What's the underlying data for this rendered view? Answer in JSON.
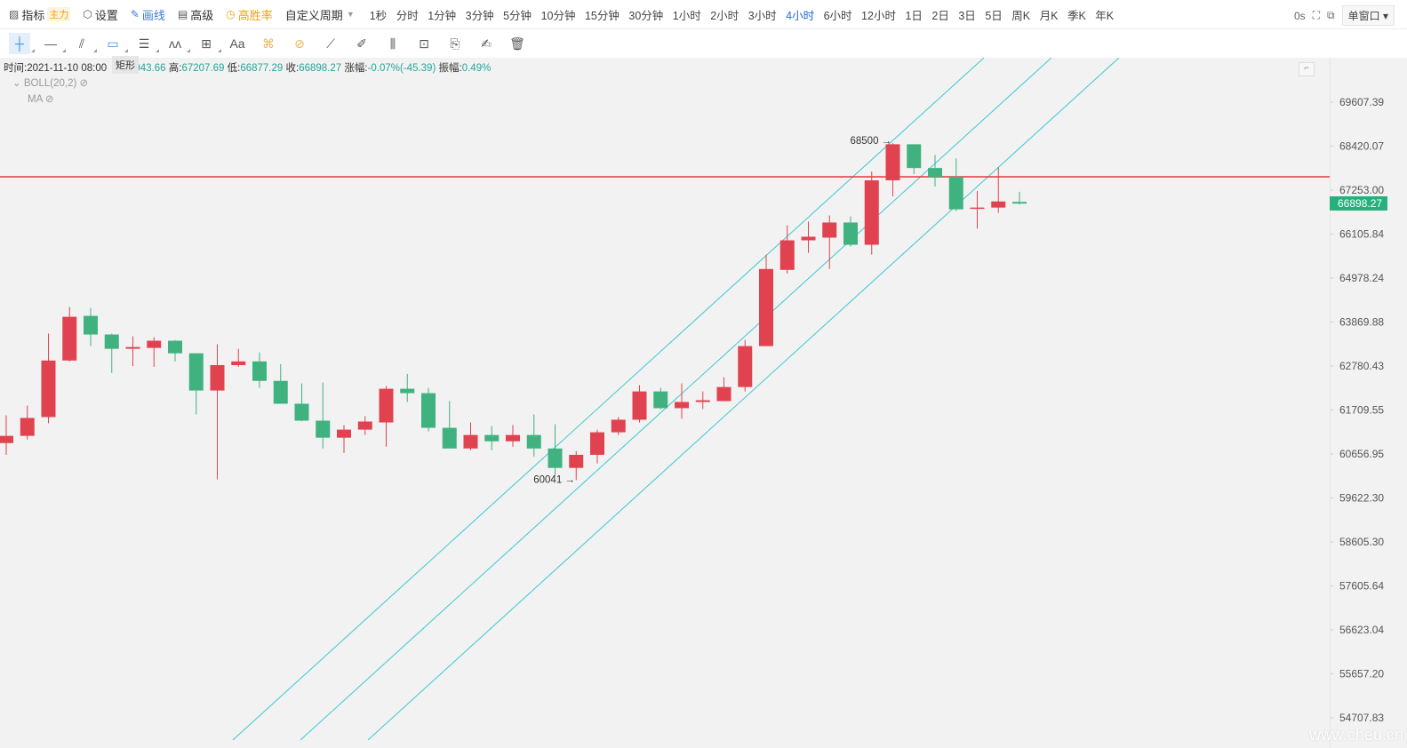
{
  "toolbar": {
    "indicator": "指标",
    "indicator_badge": "主力",
    "settings": "设置",
    "draw": "画线",
    "advanced": "高级",
    "win_rate": "高胜率",
    "custom_period": "自定义周期",
    "periods": [
      "1秒",
      "分时",
      "1分钟",
      "3分钟",
      "5分钟",
      "10分钟",
      "15分钟",
      "30分钟",
      "1小时",
      "2小时",
      "3小时",
      "4小时",
      "6小时",
      "12小时",
      "1日",
      "2日",
      "3日",
      "5日",
      "周K",
      "月K",
      "季K",
      "年K"
    ],
    "active_period": "4小时",
    "countdown": "0s",
    "window_mode": "单窗口"
  },
  "drawing_tools": [
    "crosshair",
    "horizontal-line",
    "parallel-lines",
    "rectangle",
    "fibonacci",
    "wave",
    "measure-box",
    "text",
    "highlighter",
    "eraser",
    "ruler",
    "pen",
    "candle-pattern",
    "lock",
    "bookmark",
    "notes",
    "trash"
  ],
  "drawing_tool_text": "Aa",
  "tooltip": "矩形",
  "info": {
    "time_label": "时间:",
    "time": "2021-11-10 08:00",
    "open_partial": "943.66",
    "high_label": "高:",
    "high": "67207.69",
    "low_label": "低:",
    "low": "66877.29",
    "close_label": "收:",
    "close": "66898.27",
    "change_label": "涨幅:",
    "change": "-0.07%(-45.39)",
    "amp_label": "振幅:",
    "amp": "0.49%"
  },
  "indicators": [
    "BOLL(20,2)",
    "MA"
  ],
  "current_price": "66898.27",
  "watermark": "www.cheu.cn",
  "colors": {
    "up": "#e0434f",
    "down": "#3fb27f",
    "channel": "#3cc8cf",
    "hline": "#e8353f",
    "active": "#3a7bd5"
  },
  "chart_data": {
    "type": "candlestick",
    "period": "4小时",
    "y_scale": "log",
    "y_ticks": [
      69607.39,
      68420.07,
      67253.0,
      66105.84,
      64978.24,
      63869.88,
      62780.43,
      61709.55,
      60656.95,
      59622.3,
      58605.3,
      57605.64,
      56623.04,
      55657.2,
      54707.83
    ],
    "horizontal_line": 67605,
    "annotations": [
      {
        "text": "68500",
        "candle": 42
      },
      {
        "text": "60041",
        "candle": 27
      }
    ],
    "candles": [
      [
        60915,
        61581,
        60636,
        61087
      ],
      [
        61087,
        61817,
        61000,
        61517
      ],
      [
        61538,
        63581,
        61388,
        62915
      ],
      [
        62915,
        64245,
        62890,
        64001
      ],
      [
        64023,
        64223,
        63271,
        63559
      ],
      [
        63559,
        63580,
        62609,
        63204
      ],
      [
        63204,
        63515,
        62780,
        63248
      ],
      [
        63226,
        63493,
        62759,
        63404
      ],
      [
        63404,
        63420,
        62893,
        63093
      ],
      [
        63093,
        63093,
        61603,
        62181
      ],
      [
        62181,
        63315,
        60057,
        62802
      ],
      [
        62802,
        63204,
        62759,
        62893
      ],
      [
        62893,
        63115,
        62245,
        62416
      ],
      [
        62416,
        62826,
        61860,
        61860
      ],
      [
        61860,
        62352,
        61440,
        61452
      ],
      [
        61452,
        62373,
        60786,
        61044
      ],
      [
        61044,
        61345,
        60679,
        61237
      ],
      [
        61237,
        61560,
        61108,
        61431
      ],
      [
        61409,
        62288,
        60829,
        62224
      ],
      [
        62224,
        62587,
        61903,
        62117
      ],
      [
        62117,
        62245,
        61194,
        61280
      ],
      [
        61280,
        61924,
        60786,
        60786
      ],
      [
        60786,
        61409,
        60743,
        61108
      ],
      [
        61108,
        61323,
        60743,
        60958
      ],
      [
        60958,
        61345,
        60829,
        61108
      ],
      [
        61108,
        61603,
        60595,
        60786
      ],
      [
        60786,
        61366,
        60140,
        60326
      ],
      [
        60326,
        60722,
        60041,
        60636
      ],
      [
        60636,
        61237,
        60429,
        61173
      ],
      [
        61173,
        61538,
        61108,
        61474
      ],
      [
        61474,
        62309,
        61409,
        62159
      ],
      [
        62159,
        62245,
        61731,
        61753
      ],
      [
        61753,
        62352,
        61495,
        61903
      ],
      [
        61903,
        62159,
        61731,
        61945
      ],
      [
        61924,
        62502,
        61924,
        62266
      ],
      [
        62266,
        63426,
        62159,
        63271
      ],
      [
        63271,
        65577,
        63271,
        65209
      ],
      [
        65186,
        66335,
        65094,
        65945
      ],
      [
        65945,
        66429,
        65623,
        66037
      ],
      [
        66014,
        66589,
        65209,
        66406
      ],
      [
        66406,
        66566,
        65784,
        65830
      ],
      [
        65830,
        67744,
        65577,
        67511
      ],
      [
        67511,
        68500,
        67093,
        68470
      ],
      [
        68470,
        68470,
        67674,
        67837
      ],
      [
        67837,
        68187,
        67349,
        67605
      ],
      [
        67605,
        68094,
        66703,
        66749
      ],
      [
        66772,
        67230,
        66245,
        66795
      ],
      [
        66795,
        67860,
        66658,
        66955
      ],
      [
        66943.66,
        67207.69,
        66877.29,
        66898.27
      ]
    ]
  }
}
